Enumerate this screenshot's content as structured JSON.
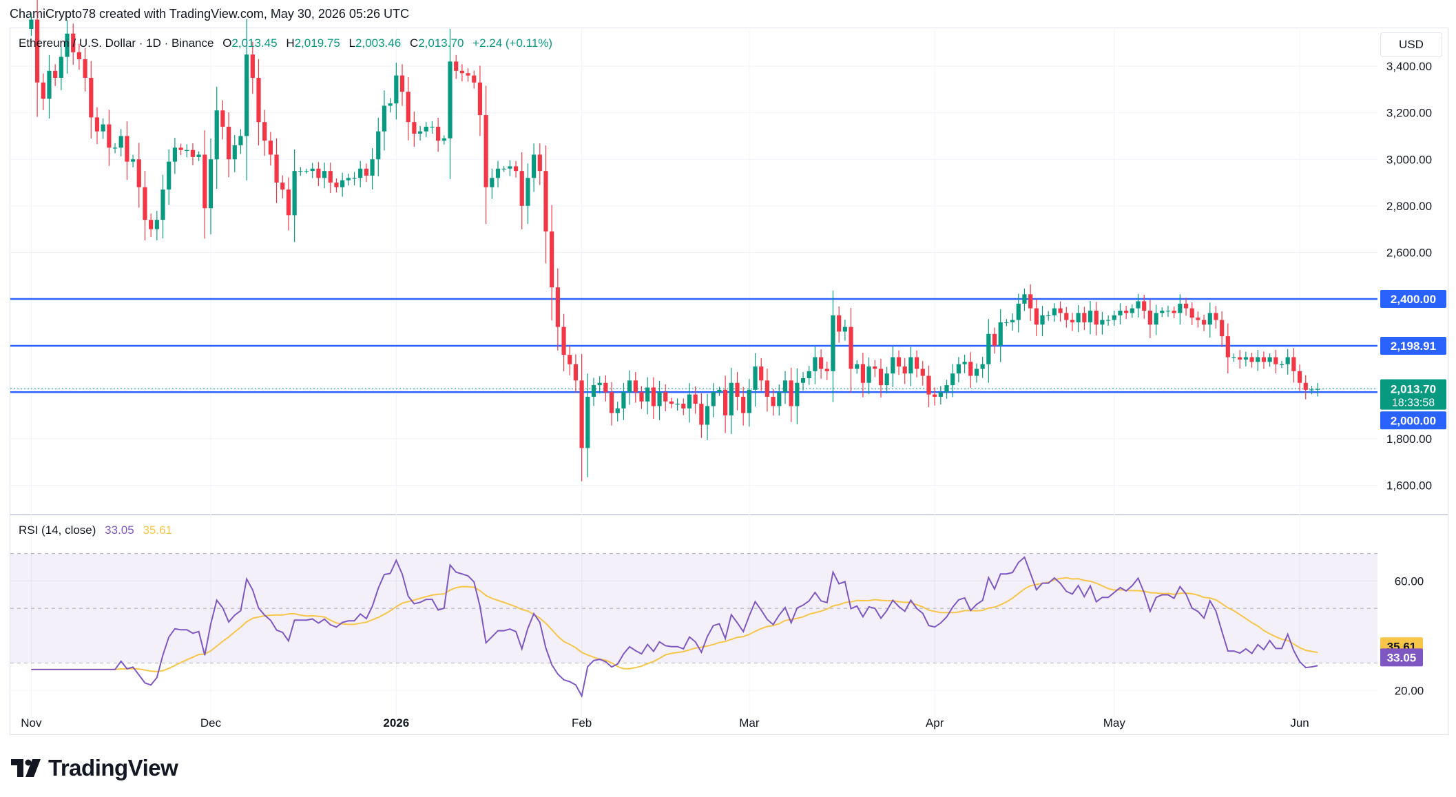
{
  "header": {
    "attribution": "ChamiCrypto78 created with TradingView.com, May 30, 2026 05:26 UTC"
  },
  "legend": {
    "symbol": "Ethereum / U.S. Dollar · 1D · Binance",
    "open_label": "O",
    "open": "2,013.45",
    "high_label": "H",
    "high": "2,019.75",
    "low_label": "L",
    "low": "2,003.46",
    "close_label": "C",
    "close": "2,013.70",
    "change": "+2.24 (+0.11%)"
  },
  "currency_button": "USD",
  "rsi_legend": {
    "label": "RSI (14, close)",
    "rsi": "33.05",
    "rsi_ma": "35.61"
  },
  "footer": {
    "brand": "TradingView"
  },
  "colors": {
    "up": "#089981",
    "down": "#f23645",
    "level_line": "#2962ff",
    "rsi_line": "#7e57c2",
    "rsi_ma": "#f7c548",
    "rsi_band": "#7e57c2"
  },
  "chart_data": [
    {
      "type": "candlestick",
      "title": "Ethereum / U.S. Dollar · 1D · Binance",
      "y_axis_ticks": [
        "3,400.00",
        "3,200.00",
        "3,000.00",
        "2,800.00",
        "2,600.00",
        "2,400.00",
        "2,200.00",
        "2,000.00",
        "1,800.00",
        "1,600.00"
      ],
      "y_tick_values": [
        3400,
        3200,
        3000,
        2800,
        2600,
        2400,
        2200,
        2000,
        1800,
        1600
      ],
      "ylim": [
        1480,
        3560
      ],
      "x_axis_labels": [
        "Nov",
        "Dec",
        "2026",
        "Feb",
        "Mar",
        "Apr",
        "May",
        "Jun"
      ],
      "x_label_days": [
        0,
        30,
        61,
        92,
        120,
        151,
        181,
        212
      ],
      "x_range_days": [
        -3.5,
        225
      ],
      "first_date": "2025-11-01",
      "grid": true,
      "horizontal_levels": [
        {
          "value": 2400,
          "label": "2,400.00"
        },
        {
          "value": 2198.91,
          "label": "2,198.91"
        },
        {
          "value": 2000,
          "label": "2,000.00"
        }
      ],
      "last_price": {
        "value": 2013.7,
        "label": "2,013.70",
        "countdown": "18:33:58"
      },
      "series": [
        {
          "closes": [
            3600,
            3330,
            3260,
            3380,
            3350,
            3440,
            3540,
            3460,
            3430,
            3350,
            3180,
            3120,
            3150,
            3050,
            3050,
            3100,
            2990,
            3000,
            2880,
            2740,
            2700,
            2740,
            2870,
            2990,
            3050,
            3040,
            3040,
            3010,
            3020,
            2790,
            3000,
            3210,
            3140,
            3000,
            3060,
            3100,
            3450,
            3350,
            3160,
            3080,
            3020,
            2900,
            2870,
            2760,
            2950,
            2950,
            2950,
            2960,
            2920,
            2950,
            2900,
            2880,
            2910,
            2920,
            2920,
            2960,
            2930,
            3000,
            3120,
            3230,
            3240,
            3360,
            3290,
            3160,
            3110,
            3120,
            3140,
            3140,
            3080,
            3090,
            3420,
            3380,
            3370,
            3360,
            3330,
            3190,
            2880,
            2920,
            2960,
            2960,
            2970,
            2950,
            2800,
            2920,
            3020,
            2950,
            2690,
            2450,
            2280,
            2160,
            2120,
            2050,
            1760,
            1980,
            2030,
            2040,
            2000,
            1910,
            1930,
            2000,
            2050,
            2000,
            1960,
            2020,
            1940,
            2000,
            1960,
            1950,
            1950,
            1930,
            1990,
            1950,
            1860,
            1940,
            2000,
            2010,
            1900,
            2040,
            1980,
            1910,
            2010,
            2110,
            2050,
            1980,
            1940,
            2000,
            2050,
            1940,
            2040,
            2060,
            2090,
            2150,
            2100,
            2090,
            2330,
            2260,
            2280,
            2100,
            2120,
            2040,
            2110,
            2100,
            2030,
            2080,
            2150,
            2110,
            2080,
            2150,
            2100,
            2070,
            1990,
            1980,
            2000,
            2030,
            2080,
            2120,
            2130,
            2070,
            2100,
            2120,
            2250,
            2200,
            2300,
            2300,
            2310,
            2380,
            2420,
            2360,
            2290,
            2330,
            2330,
            2360,
            2340,
            2310,
            2300,
            2340,
            2300,
            2350,
            2290,
            2310,
            2310,
            2330,
            2350,
            2340,
            2360,
            2390,
            2350,
            2290,
            2340,
            2350,
            2350,
            2340,
            2380,
            2360,
            2320,
            2310,
            2290,
            2340,
            2310,
            2240,
            2150,
            2150,
            2140,
            2150,
            2130,
            2150,
            2130,
            2150,
            2120,
            2120,
            2150,
            2090,
            2040,
            2010,
            2011.46,
            2013.7
          ]
        }
      ]
    },
    {
      "type": "line",
      "title": "RSI (14, close)",
      "y_axis_ticks": [
        "60.00",
        "20.00"
      ],
      "y_tick_values": [
        60,
        20
      ],
      "ylim": [
        10,
        84
      ],
      "band": [
        30,
        70
      ],
      "midline": 50,
      "current": {
        "rsi": 33.05,
        "rsi_ma": 35.61
      },
      "series": [
        {
          "name": "RSI",
          "values": []
        },
        {
          "name": "RSI-based MA",
          "values": []
        }
      ]
    }
  ]
}
